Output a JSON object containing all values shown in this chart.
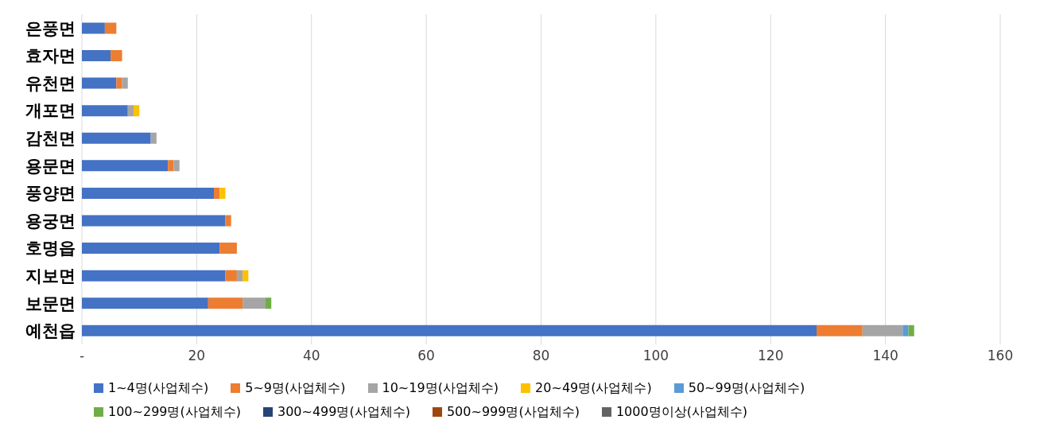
{
  "chart_data": {
    "type": "bar",
    "orientation": "horizontal",
    "stacked": true,
    "categories": [
      "은풍면",
      "효자면",
      "유천면",
      "개포면",
      "감천면",
      "용문면",
      "풍양면",
      "용궁면",
      "호명읍",
      "지보면",
      "보문면",
      "예천읍"
    ],
    "series": [
      {
        "name": "1~4명(사업체수)",
        "color": "#4472c4",
        "values": [
          4,
          5,
          6,
          8,
          12,
          15,
          23,
          25,
          24,
          25,
          22,
          128
        ]
      },
      {
        "name": "5~9명(사업체수)",
        "color": "#ed7d31",
        "values": [
          2,
          2,
          1,
          0,
          0,
          1,
          1,
          1,
          3,
          2,
          6,
          8
        ]
      },
      {
        "name": "10~19명(사업체수)",
        "color": "#a5a5a5",
        "values": [
          0,
          0,
          1,
          1,
          1,
          1,
          0,
          0,
          0,
          1,
          4,
          7
        ]
      },
      {
        "name": "20~49명(사업체수)",
        "color": "#ffc000",
        "values": [
          0,
          0,
          0,
          1,
          0,
          0,
          1,
          0,
          0,
          1,
          0,
          0
        ]
      },
      {
        "name": "50~99명(사업체수)",
        "color": "#5b9bd5",
        "values": [
          0,
          0,
          0,
          0,
          0,
          0,
          0,
          0,
          0,
          0,
          0,
          1
        ]
      },
      {
        "name": "100~299명(사업체수)",
        "color": "#70ad47",
        "values": [
          0,
          0,
          0,
          0,
          0,
          0,
          0,
          0,
          0,
          0,
          1,
          1
        ]
      },
      {
        "name": "300~499명(사업체수)",
        "color": "#264478",
        "values": [
          0,
          0,
          0,
          0,
          0,
          0,
          0,
          0,
          0,
          0,
          0,
          0
        ]
      },
      {
        "name": "500~999명(사업체수)",
        "color": "#9e480e",
        "values": [
          0,
          0,
          0,
          0,
          0,
          0,
          0,
          0,
          0,
          0,
          0,
          0
        ]
      },
      {
        "name": "1000명이상(사업체수)",
        "color": "#636363",
        "values": [
          0,
          0,
          0,
          0,
          0,
          0,
          0,
          0,
          0,
          0,
          0,
          0
        ]
      }
    ],
    "xlim": [
      0,
      160
    ],
    "xticks": [
      {
        "value": 0,
        "label": "-"
      },
      20,
      40,
      60,
      80,
      100,
      120,
      140,
      160
    ],
    "grid": "x",
    "legend": "bottom"
  }
}
